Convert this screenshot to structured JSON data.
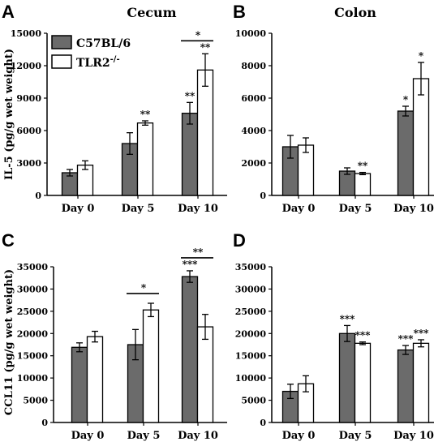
{
  "colors": {
    "c57": "#6b6b6b",
    "tlr2": "#ffffff",
    "axis": "#000000"
  },
  "legend": [
    {
      "label": "C57BL/6",
      "color": "#6b6b6b"
    },
    {
      "label": "TLR2",
      "sup": "-/-",
      "color": "#ffffff"
    }
  ],
  "chart_data": [
    {
      "panel": "A",
      "title": "Cecum",
      "type": "bar",
      "ylabel": "IL-5 (pg/g wet weight)",
      "ylim": [
        0,
        15000
      ],
      "yticks": [
        "0",
        "3000",
        "6000",
        "9000",
        "12000",
        "15000"
      ],
      "categories": [
        "Day 0",
        "Day 5",
        "Day 10"
      ],
      "series": [
        {
          "name": "C57BL/6",
          "values": [
            2100,
            4800,
            7600
          ],
          "errors": [
            300,
            1000,
            1000
          ],
          "sig": [
            "",
            "",
            "**"
          ]
        },
        {
          "name": "TLR2-/-",
          "values": [
            2800,
            6700,
            11600
          ],
          "errors": [
            400,
            200,
            1500
          ],
          "sig": [
            "",
            "**",
            "**"
          ]
        }
      ],
      "brackets": [
        {
          "category": 2,
          "label": "*"
        }
      ]
    },
    {
      "panel": "B",
      "title": "Colon",
      "type": "bar",
      "ylabel": "",
      "ylim": [
        0,
        10000
      ],
      "yticks": [
        "0",
        "2000",
        "4000",
        "6000",
        "8000",
        "10000"
      ],
      "categories": [
        "Day 0",
        "Day 5",
        "Day 10"
      ],
      "series": [
        {
          "name": "C57BL/6",
          "values": [
            3000,
            1500,
            5200
          ],
          "errors": [
            700,
            200,
            300
          ],
          "sig": [
            "",
            "",
            "*"
          ]
        },
        {
          "name": "TLR2-/-",
          "values": [
            3100,
            1350,
            7200
          ],
          "errors": [
            450,
            70,
            1000
          ],
          "sig": [
            "",
            "**",
            "*"
          ]
        }
      ],
      "brackets": []
    },
    {
      "panel": "C",
      "title": "",
      "type": "bar",
      "ylabel": "CCL11 (pg/g wet weight)",
      "ylim": [
        0,
        35000
      ],
      "yticks": [
        "0",
        "5000",
        "10000",
        "15000",
        "20000",
        "25000",
        "30000",
        "35000"
      ],
      "categories": [
        "Day 0",
        "Day 5",
        "Day 10"
      ],
      "series": [
        {
          "name": "C57BL/6",
          "values": [
            16900,
            17500,
            32800
          ],
          "errors": [
            1000,
            3400,
            1300
          ],
          "sig": [
            "",
            "",
            "***"
          ]
        },
        {
          "name": "TLR2-/-",
          "values": [
            19300,
            25300,
            21500
          ],
          "errors": [
            1200,
            1500,
            2800
          ],
          "sig": [
            "",
            "",
            ""
          ]
        }
      ],
      "brackets": [
        {
          "category": 1,
          "label": "*"
        },
        {
          "category": 2,
          "label": "**"
        }
      ]
    },
    {
      "panel": "D",
      "title": "",
      "type": "bar",
      "ylabel": "",
      "ylim": [
        0,
        35000
      ],
      "yticks": [
        "0",
        "5000",
        "10000",
        "15000",
        "20000",
        "25000",
        "30000",
        "35000"
      ],
      "categories": [
        "Day 0",
        "Day 5",
        "Day 10"
      ],
      "series": [
        {
          "name": "C57BL/6",
          "values": [
            7000,
            20000,
            16300
          ],
          "errors": [
            1600,
            1800,
            1000
          ],
          "sig": [
            "",
            "***",
            "***"
          ]
        },
        {
          "name": "TLR2-/-",
          "values": [
            8700,
            17800,
            17800
          ],
          "errors": [
            1800,
            300,
            800
          ],
          "sig": [
            "",
            "***",
            "***"
          ]
        }
      ],
      "brackets": []
    }
  ]
}
